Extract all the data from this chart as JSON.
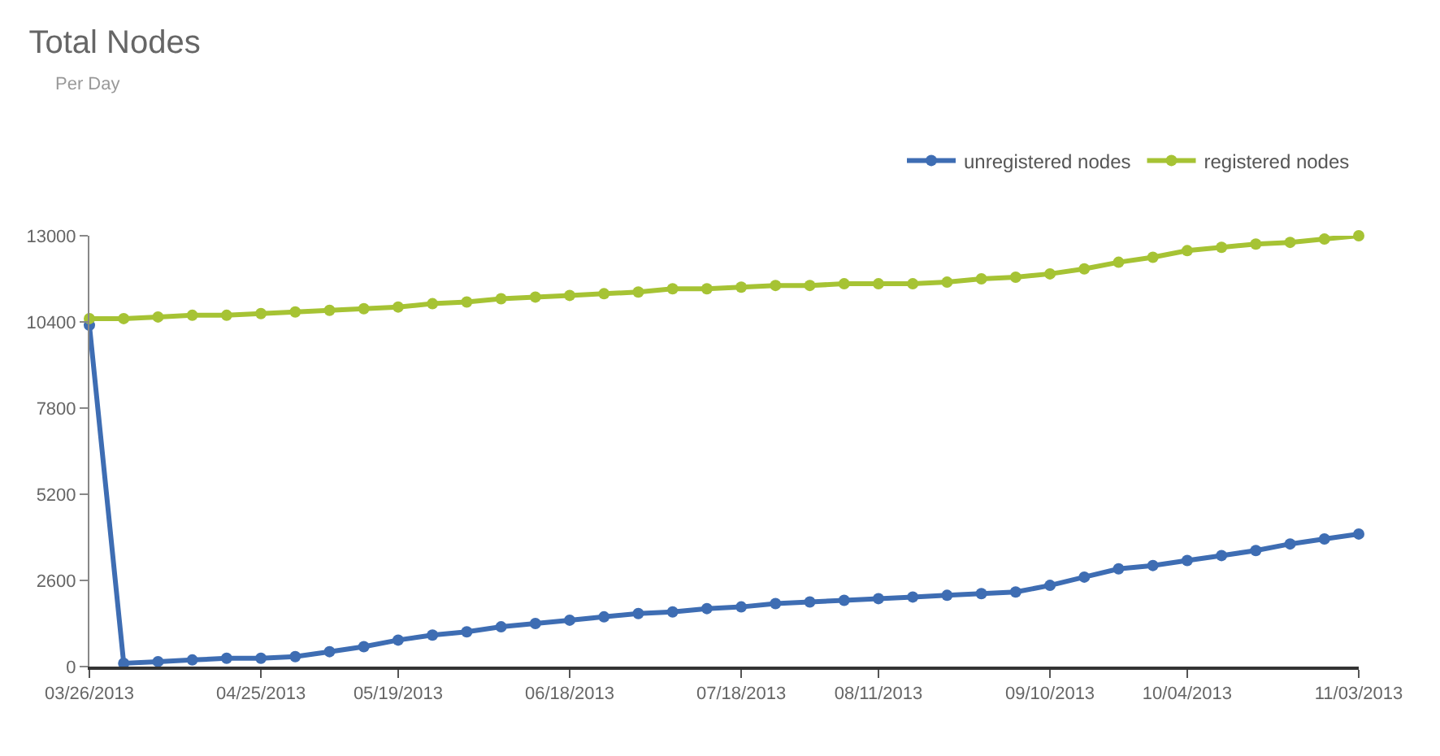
{
  "chart_data": {
    "type": "line",
    "title": "Total Nodes",
    "subtitle": "Per Day",
    "categories": [
      "03/26/2013",
      null,
      null,
      null,
      null,
      "04/25/2013",
      null,
      null,
      null,
      "05/19/2013",
      null,
      null,
      null,
      null,
      "06/18/2013",
      null,
      null,
      null,
      null,
      "07/18/2013",
      null,
      null,
      null,
      "08/11/2013",
      null,
      null,
      null,
      null,
      "09/10/2013",
      null,
      null,
      null,
      "10/04/2013",
      null,
      null,
      null,
      null,
      "11/03/2013"
    ],
    "series": [
      {
        "name": "unregistered nodes",
        "color": "#3e6db3",
        "values": [
          10300,
          100,
          150,
          200,
          250,
          250,
          300,
          450,
          600,
          800,
          950,
          1050,
          1200,
          1300,
          1400,
          1500,
          1600,
          1650,
          1750,
          1800,
          1900,
          1950,
          2000,
          2050,
          2100,
          2150,
          2200,
          2250,
          2450,
          2700,
          2950,
          3050,
          3200,
          3350,
          3500,
          3700,
          3850,
          4000
        ]
      },
      {
        "name": "registered nodes",
        "color": "#a6c334",
        "values": [
          10500,
          10500,
          10550,
          10600,
          10600,
          10650,
          10700,
          10750,
          10800,
          10850,
          10950,
          11000,
          11100,
          11150,
          11200,
          11250,
          11300,
          11400,
          11400,
          11450,
          11500,
          11500,
          11550,
          11550,
          11550,
          11600,
          11700,
          11750,
          11850,
          12000,
          12200,
          12350,
          12550,
          12650,
          12750,
          12800,
          12900,
          13000
        ]
      }
    ],
    "ylim": [
      0,
      13000
    ],
    "yticks": [
      0,
      2600,
      5200,
      7800,
      10400,
      13000
    ],
    "legend": "top right",
    "marker": "circle",
    "line_style": "solid"
  }
}
